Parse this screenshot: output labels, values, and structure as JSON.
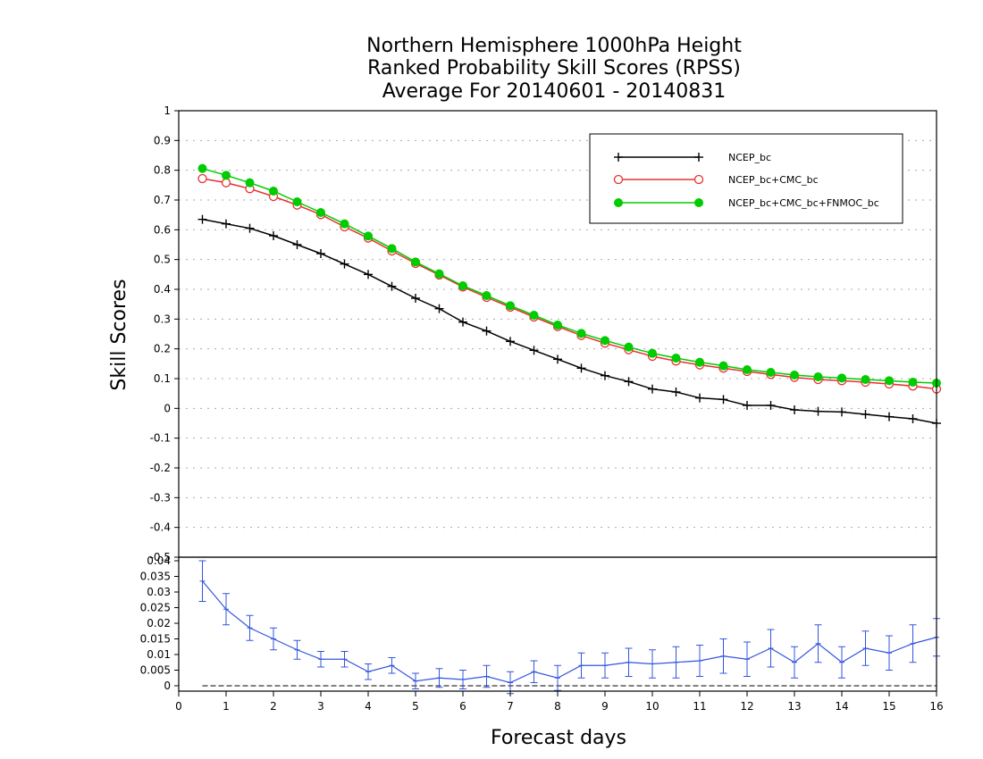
{
  "chart_data": [
    {
      "type": "line",
      "title": [
        "Northern Hemisphere 1000hPa Height",
        "Ranked Probability Skill Scores (RPSS)",
        "Average For 20140601 - 20140831"
      ],
      "ylabel": "Skill Scores",
      "ylim": [
        -0.5,
        1
      ],
      "yticks": [
        "1",
        "0.9",
        "0.8",
        "0.7",
        "0.6",
        "0.5",
        "0.4",
        "0.3",
        "0.2",
        "0.1",
        "0",
        "-0.1",
        "-0.2",
        "-0.3",
        "-0.4",
        "-0.5"
      ],
      "grid": true,
      "legend_position": "top-right",
      "x": [
        0.5,
        1,
        1.5,
        2,
        2.5,
        3,
        3.5,
        4,
        4.5,
        5,
        5.5,
        6,
        6.5,
        7,
        7.5,
        8,
        8.5,
        9,
        9.5,
        10,
        10.5,
        11,
        11.5,
        12,
        12.5,
        13,
        13.5,
        14,
        14.5,
        15,
        15.5,
        16
      ],
      "series": [
        {
          "name": "NCEP_bc",
          "color": "#000000",
          "marker": "plus",
          "values": [
            0.635,
            0.62,
            0.605,
            0.58,
            0.55,
            0.52,
            0.485,
            0.45,
            0.41,
            0.37,
            0.335,
            0.29,
            0.26,
            0.225,
            0.195,
            0.165,
            0.135,
            0.11,
            0.09,
            0.065,
            0.055,
            0.035,
            0.03,
            0.01,
            0.01,
            -0.005,
            -0.01,
            -0.012,
            -0.02,
            -0.028,
            -0.035,
            -0.05
          ]
        },
        {
          "name": "NCEP_bc+CMC_bc",
          "color": "#e83030",
          "marker": "open-circle",
          "values": [
            0.772,
            0.758,
            0.738,
            0.712,
            0.683,
            0.651,
            0.61,
            0.572,
            0.529,
            0.487,
            0.448,
            0.408,
            0.373,
            0.34,
            0.307,
            0.275,
            0.245,
            0.219,
            0.197,
            0.175,
            0.159,
            0.146,
            0.135,
            0.124,
            0.114,
            0.104,
            0.097,
            0.093,
            0.088,
            0.082,
            0.075,
            0.065
          ]
        },
        {
          "name": "NCEP_bc+CMC_bc+FNMOC_bc",
          "color": "#00cc00",
          "marker": "filled-circle",
          "values": [
            0.806,
            0.783,
            0.758,
            0.73,
            0.694,
            0.658,
            0.62,
            0.579,
            0.537,
            0.492,
            0.452,
            0.412,
            0.379,
            0.345,
            0.313,
            0.28,
            0.252,
            0.228,
            0.206,
            0.185,
            0.169,
            0.155,
            0.143,
            0.13,
            0.121,
            0.112,
            0.106,
            0.102,
            0.097,
            0.093,
            0.088,
            0.085
          ]
        }
      ]
    },
    {
      "type": "line",
      "xlabel": "Forecast days",
      "xlim": [
        0,
        16
      ],
      "xticks": [
        "0",
        "1",
        "2",
        "3",
        "4",
        "5",
        "6",
        "7",
        "8",
        "9",
        "10",
        "11",
        "12",
        "13",
        "14",
        "15",
        "16"
      ],
      "ylim": [
        0,
        0.04
      ],
      "yticks": [
        "0.04",
        "0.035",
        "0.03",
        "0.025",
        "0.02",
        "0.015",
        "0.01",
        "0.005",
        "0"
      ],
      "zero_line": "dashed",
      "x": [
        0.5,
        1,
        1.5,
        2,
        2.5,
        3,
        3.5,
        4,
        4.5,
        5,
        5.5,
        6,
        6.5,
        7,
        7.5,
        8,
        8.5,
        9,
        9.5,
        10,
        10.5,
        11,
        11.5,
        12,
        12.5,
        13,
        13.5,
        14,
        14.5,
        15,
        15.5,
        16
      ],
      "series": [
        {
          "color": "#3355dd",
          "values": [
            0.0335,
            0.0245,
            0.0185,
            0.015,
            0.0115,
            0.0085,
            0.0085,
            0.0045,
            0.0065,
            0.0015,
            0.0025,
            0.002,
            0.003,
            0.001,
            0.0045,
            0.0025,
            0.0065,
            0.0065,
            0.0075,
            0.007,
            0.0075,
            0.008,
            0.0095,
            0.0085,
            0.012,
            0.0075,
            0.0135,
            0.0075,
            0.012,
            0.0105,
            0.0135,
            0.0155
          ],
          "error": [
            0.0065,
            0.005,
            0.004,
            0.0035,
            0.003,
            0.0025,
            0.0025,
            0.0025,
            0.0025,
            0.0025,
            0.003,
            0.003,
            0.0035,
            0.0035,
            0.0035,
            0.004,
            0.004,
            0.004,
            0.0045,
            0.0045,
            0.005,
            0.005,
            0.0055,
            0.0055,
            0.006,
            0.005,
            0.006,
            0.005,
            0.0055,
            0.0055,
            0.006,
            0.006
          ]
        }
      ]
    }
  ]
}
